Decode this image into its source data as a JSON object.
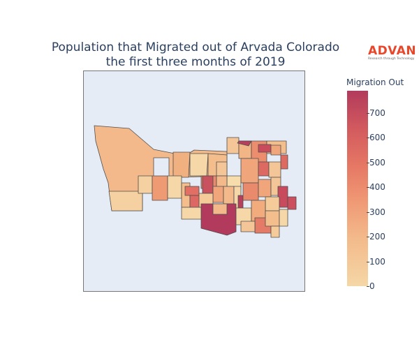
{
  "title_line1": "Population that Migrated out of Arvada Colorado",
  "title_line2": "the first three months of 2019",
  "logo": {
    "word": "ADVAN",
    "tagline": "Research through Technology"
  },
  "colorbar": {
    "title": "Migration Out",
    "min": 0,
    "max": 790,
    "ticks": [
      "0",
      "100",
      "200",
      "300",
      "400",
      "500",
      "600",
      "700"
    ],
    "colors": [
      "#f5d7a6",
      "#f3b98a",
      "#ef9673",
      "#e57764",
      "#d35b5e",
      "#b23a5c"
    ]
  },
  "map": {
    "background": "#e5ecf6",
    "border_color": "#4d4d4d"
  }
}
